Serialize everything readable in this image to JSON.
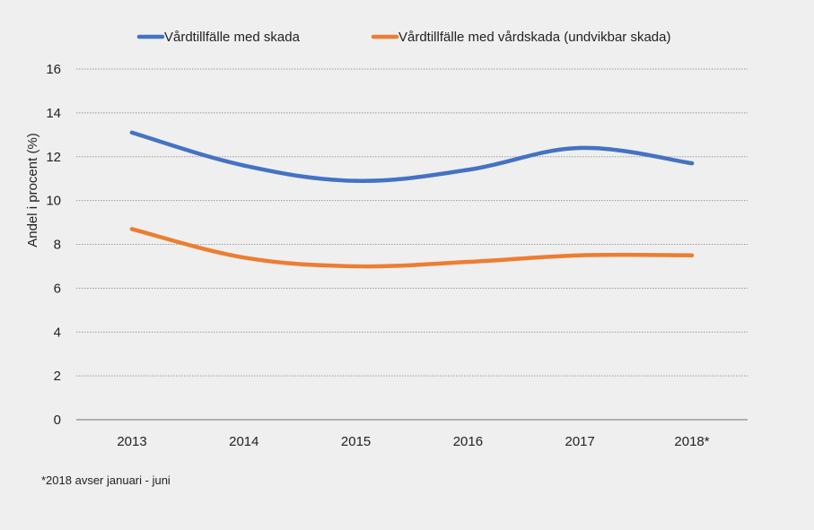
{
  "chart_data": {
    "type": "line",
    "title": "",
    "xlabel": "",
    "ylabel": "Andel i procent (%)",
    "categories": [
      "2013",
      "2014",
      "2015",
      "2016",
      "2017",
      "2018*"
    ],
    "ylim": [
      0,
      16
    ],
    "yticks": [
      0,
      2,
      4,
      6,
      8,
      10,
      12,
      14,
      16
    ],
    "grid": true,
    "legend_position": "top",
    "series": [
      {
        "name": "Vårdtillfälle med skada",
        "color": "#4472c4",
        "values": [
          13.1,
          11.6,
          10.9,
          11.4,
          12.4,
          11.7
        ]
      },
      {
        "name": "Vårdtillfälle med vårdskada (undvikbar skada)",
        "color": "#ed7d31",
        "values": [
          8.7,
          7.4,
          7.0,
          7.2,
          7.5,
          7.5
        ]
      }
    ],
    "footnote": "*2018 avser januari - juni"
  }
}
